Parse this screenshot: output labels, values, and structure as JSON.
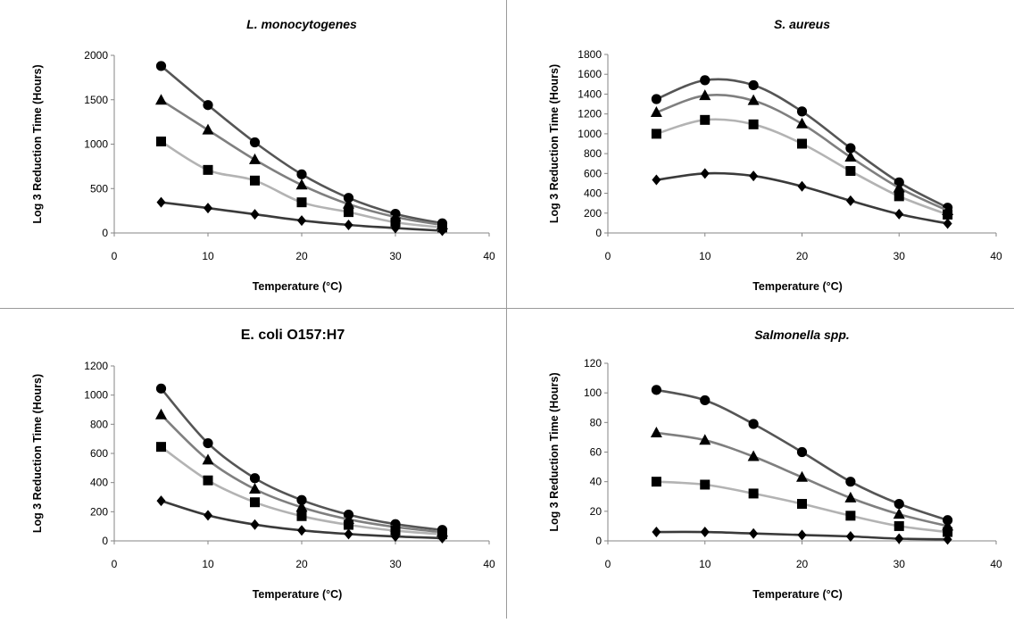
{
  "chart_data": [
    {
      "type": "line",
      "title": "L. monocytogenes",
      "title_style": "italic",
      "xlabel": "Temperature (°C)",
      "ylabel": "Log 3 Reduction Time (Hours)",
      "xlim": [
        0,
        40
      ],
      "ylim": [
        0,
        2000
      ],
      "xticks": [
        0,
        10,
        20,
        30,
        40
      ],
      "yticks": [
        0,
        500,
        1000,
        1500,
        2000
      ],
      "x": [
        5,
        10,
        15,
        20,
        25,
        30,
        35
      ],
      "grid": false,
      "legend": "none",
      "series": [
        {
          "marker": "circle",
          "color": "#555555",
          "values": [
            1880,
            1440,
            1020,
            660,
            395,
            215,
            108
          ]
        },
        {
          "marker": "triangle",
          "color": "#7f7f7f",
          "values": [
            1495,
            1160,
            825,
            540,
            325,
            180,
            90
          ]
        },
        {
          "marker": "square",
          "color": "#b3b3b3",
          "values": [
            1030,
            710,
            590,
            345,
            235,
            120,
            62
          ]
        },
        {
          "marker": "diamond",
          "color": "#3a3a3a",
          "values": [
            345,
            280,
            210,
            140,
            90,
            55,
            25
          ]
        }
      ]
    },
    {
      "type": "line",
      "title": "S. aureus",
      "title_style": "italic",
      "xlabel": "Temperature (°C)",
      "ylabel": "Log 3 Reduction Time (Hours)",
      "xlim": [
        0,
        40
      ],
      "ylim": [
        0,
        1800
      ],
      "xticks": [
        0,
        10,
        20,
        30,
        40
      ],
      "yticks": [
        0,
        200,
        400,
        600,
        800,
        1000,
        1200,
        1400,
        1600,
        1800
      ],
      "x": [
        5,
        10,
        15,
        20,
        25,
        30,
        35
      ],
      "grid": false,
      "legend": "none",
      "series": [
        {
          "marker": "circle",
          "color": "#555555",
          "values": [
            1350,
            1540,
            1490,
            1225,
            855,
            510,
            255
          ]
        },
        {
          "marker": "triangle",
          "color": "#7f7f7f",
          "values": [
            1215,
            1385,
            1335,
            1100,
            765,
            455,
            225
          ]
        },
        {
          "marker": "square",
          "color": "#b3b3b3",
          "values": [
            1000,
            1140,
            1095,
            900,
            625,
            370,
            185
          ]
        },
        {
          "marker": "diamond",
          "color": "#3a3a3a",
          "values": [
            535,
            600,
            575,
            470,
            325,
            190,
            95
          ]
        }
      ]
    },
    {
      "type": "line",
      "title": "E. coli O157:H7",
      "title_style": "normal",
      "xlabel": "Temperature (°C)",
      "ylabel": "Log 3 Reduction Time (Hours)",
      "xlim": [
        0,
        40
      ],
      "ylim": [
        0,
        1200
      ],
      "xticks": [
        0,
        10,
        20,
        30,
        40
      ],
      "yticks": [
        0,
        200,
        400,
        600,
        800,
        1000,
        1200
      ],
      "x": [
        5,
        10,
        15,
        20,
        25,
        30,
        35
      ],
      "grid": false,
      "legend": "none",
      "series": [
        {
          "marker": "circle",
          "color": "#555555",
          "values": [
            1045,
            670,
            430,
            280,
            180,
            115,
            75
          ]
        },
        {
          "marker": "triangle",
          "color": "#7f7f7f",
          "values": [
            865,
            555,
            355,
            230,
            148,
            95,
            60
          ]
        },
        {
          "marker": "square",
          "color": "#b3b3b3",
          "values": [
            645,
            415,
            265,
            170,
            110,
            70,
            45
          ]
        },
        {
          "marker": "diamond",
          "color": "#3a3a3a",
          "values": [
            275,
            175,
            112,
            72,
            47,
            30,
            19
          ]
        }
      ]
    },
    {
      "type": "line",
      "title": "Salmonella spp.",
      "title_style": "italic",
      "xlabel": "Temperature (°C)",
      "ylabel": "Log 3 Reduction Time (Hours)",
      "xlim": [
        0,
        40
      ],
      "ylim": [
        0,
        120
      ],
      "xticks": [
        0,
        10,
        20,
        30,
        40
      ],
      "yticks": [
        0,
        20,
        40,
        60,
        80,
        100,
        120
      ],
      "x": [
        5,
        10,
        15,
        20,
        25,
        30,
        35
      ],
      "grid": false,
      "legend": "none",
      "series": [
        {
          "marker": "circle",
          "color": "#555555",
          "values": [
            102,
            95,
            79,
            60,
            40,
            25,
            14
          ]
        },
        {
          "marker": "triangle",
          "color": "#7f7f7f",
          "values": [
            73,
            68,
            57,
            43,
            29,
            18,
            10
          ]
        },
        {
          "marker": "square",
          "color": "#b3b3b3",
          "values": [
            40,
            38,
            32,
            25,
            17,
            10,
            6
          ]
        },
        {
          "marker": "diamond",
          "color": "#3a3a3a",
          "values": [
            6,
            6,
            5,
            4,
            3,
            1.5,
            1
          ]
        }
      ]
    }
  ]
}
